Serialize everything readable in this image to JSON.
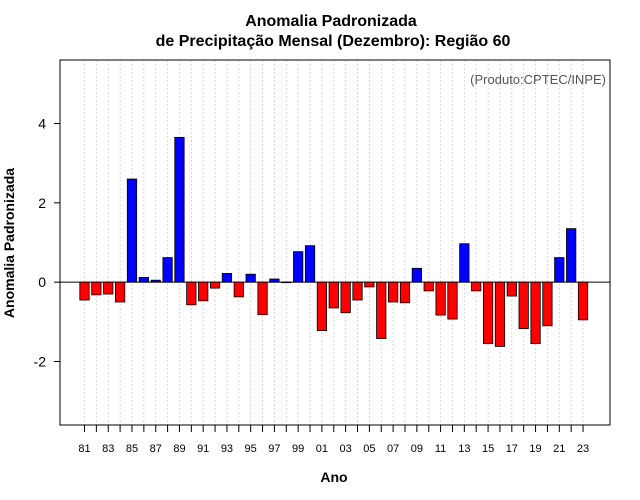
{
  "chart_data": {
    "type": "bar",
    "title": "Anomalia Padronizada",
    "subtitle": "de Precipitação Mensal (Dezembro): Região 60",
    "xlabel": "Ano",
    "ylabel": "Anomalia Padronizada",
    "credit": "(Produto:CPTEC/INPE)",
    "ylim": [
      -3.6,
      5.6
    ],
    "yticks": [
      -2,
      0,
      2,
      4
    ],
    "years": [
      1981,
      1982,
      1983,
      1984,
      1985,
      1986,
      1987,
      1988,
      1989,
      1990,
      1991,
      1992,
      1993,
      1994,
      1995,
      1996,
      1997,
      1998,
      1999,
      2000,
      2001,
      2002,
      2003,
      2004,
      2005,
      2006,
      2007,
      2008,
      2009,
      2010,
      2011,
      2012,
      2013,
      2014,
      2015,
      2016,
      2017,
      2018,
      2019,
      2020,
      2021,
      2022,
      2023
    ],
    "xtick_labels": [
      "81",
      "83",
      "85",
      "87",
      "89",
      "91",
      "93",
      "95",
      "97",
      "99",
      "01",
      "03",
      "05",
      "07",
      "09",
      "11",
      "13",
      "15",
      "17",
      "19",
      "21",
      "23"
    ],
    "values": [
      -0.45,
      -0.32,
      -0.3,
      -0.5,
      2.6,
      0.12,
      0.05,
      0.62,
      3.65,
      -0.57,
      -0.47,
      -0.15,
      0.22,
      -0.37,
      0.2,
      -0.82,
      0.08,
      0.0,
      0.77,
      0.92,
      -1.22,
      -0.65,
      -0.77,
      -0.45,
      -0.12,
      -1.42,
      -0.5,
      -0.52,
      0.35,
      -0.22,
      -0.83,
      -0.93,
      0.97,
      -0.22,
      -1.55,
      -1.62,
      -0.35,
      -1.17,
      -1.55,
      -1.1,
      0.62,
      1.35,
      -0.95
    ],
    "colors": {
      "positive": "#0000ff",
      "negative": "#ff0000",
      "axis": "#000000",
      "grid": "#cccccc"
    }
  }
}
